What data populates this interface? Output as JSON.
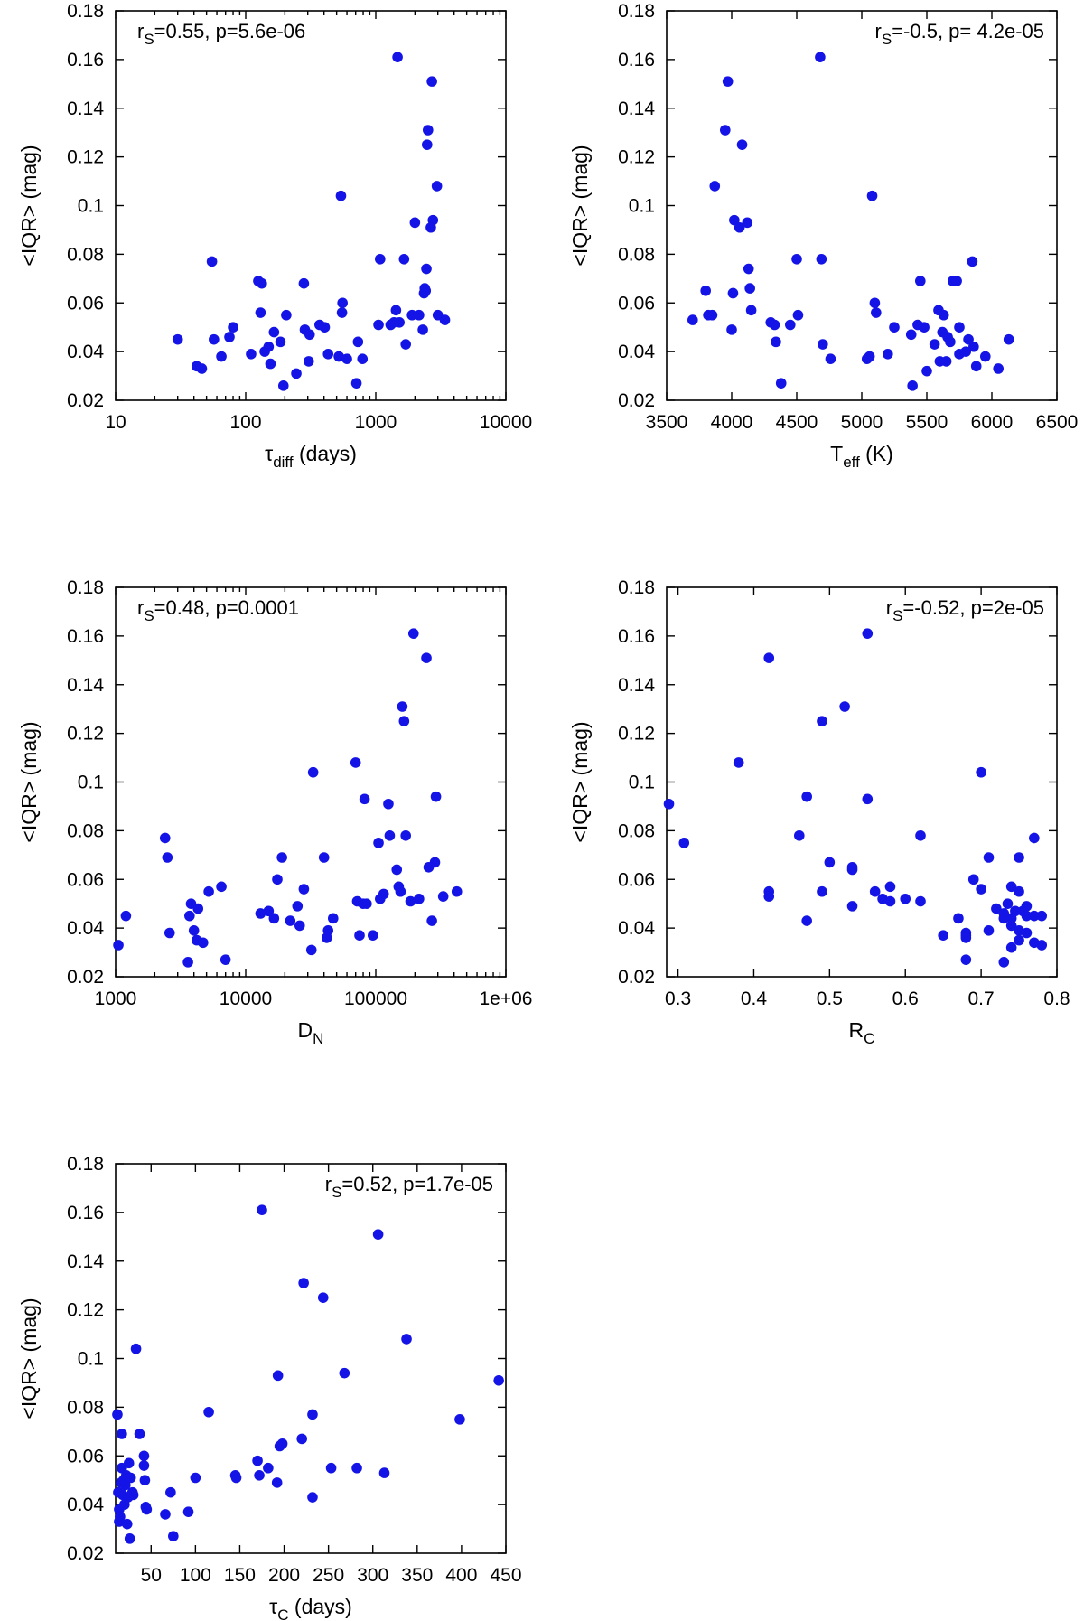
{
  "figure": {
    "marker_color": "#1414e6",
    "axis_color": "#000000",
    "background": "#ffffff"
  },
  "chart_data": [
    {
      "type": "scatter",
      "id": "tdiff",
      "xscale": "log",
      "xlim": [
        10,
        10000
      ],
      "ylim": [
        0.02,
        0.18
      ],
      "xticks": [
        "10",
        "100",
        "1000",
        "10000"
      ],
      "yticks": [
        "0.02",
        "0.04",
        "0.06",
        "0.08",
        "0.1",
        "0.12",
        "0.14",
        "0.16",
        "0.18"
      ],
      "xlabel_main": "τ",
      "xlabel_sub": "diff",
      "xlabel_tail": " (days)",
      "ylabel": "<IQR> (mag)",
      "annotation": {
        "r": "r",
        "sub": "S",
        "rest": "=0.55, p=5.6e-06",
        "position": "top-left"
      },
      "points": [
        [
          30,
          0.045
        ],
        [
          42,
          0.034
        ],
        [
          46,
          0.033
        ],
        [
          55,
          0.077
        ],
        [
          57,
          0.045
        ],
        [
          65,
          0.038
        ],
        [
          75,
          0.046
        ],
        [
          80,
          0.05
        ],
        [
          110,
          0.039
        ],
        [
          125,
          0.069
        ],
        [
          130,
          0.056
        ],
        [
          133,
          0.068
        ],
        [
          140,
          0.04
        ],
        [
          150,
          0.042
        ],
        [
          155,
          0.035
        ],
        [
          165,
          0.048
        ],
        [
          185,
          0.044
        ],
        [
          195,
          0.026
        ],
        [
          205,
          0.055
        ],
        [
          245,
          0.031
        ],
        [
          280,
          0.068
        ],
        [
          285,
          0.049
        ],
        [
          305,
          0.036
        ],
        [
          310,
          0.047
        ],
        [
          370,
          0.051
        ],
        [
          405,
          0.05
        ],
        [
          430,
          0.039
        ],
        [
          520,
          0.038
        ],
        [
          540,
          0.104
        ],
        [
          550,
          0.056
        ],
        [
          555,
          0.06
        ],
        [
          600,
          0.037
        ],
        [
          710,
          0.027
        ],
        [
          730,
          0.044
        ],
        [
          790,
          0.037
        ],
        [
          1050,
          0.051
        ],
        [
          1080,
          0.078
        ],
        [
          1300,
          0.051
        ],
        [
          1380,
          0.052
        ],
        [
          1430,
          0.057
        ],
        [
          1470,
          0.161
        ],
        [
          1520,
          0.052
        ],
        [
          1650,
          0.078
        ],
        [
          1700,
          0.043
        ],
        [
          1900,
          0.055
        ],
        [
          2000,
          0.093
        ],
        [
          2150,
          0.055
        ],
        [
          2300,
          0.049
        ],
        [
          2350,
          0.064
        ],
        [
          2380,
          0.066
        ],
        [
          2420,
          0.065
        ],
        [
          2450,
          0.074
        ],
        [
          2480,
          0.125
        ],
        [
          2520,
          0.131
        ],
        [
          2650,
          0.091
        ],
        [
          2700,
          0.151
        ],
        [
          2750,
          0.094
        ],
        [
          2950,
          0.108
        ],
        [
          3000,
          0.055
        ],
        [
          3400,
          0.053
        ]
      ]
    },
    {
      "type": "scatter",
      "id": "teff",
      "xscale": "linear",
      "xlim": [
        3500,
        6500
      ],
      "ylim": [
        0.02,
        0.18
      ],
      "xticks": [
        "3500",
        "4000",
        "4500",
        "5000",
        "5500",
        "6000",
        "6500"
      ],
      "yticks": [
        "0.02",
        "0.04",
        "0.06",
        "0.08",
        "0.1",
        "0.12",
        "0.14",
        "0.16",
        "0.18"
      ],
      "xlabel_main": "T",
      "xlabel_sub": "eff",
      "xlabel_tail": " (K)",
      "ylabel": "<IQR> (mag)",
      "annotation": {
        "r": "r",
        "sub": "S",
        "rest": "=-0.5, p= 4.2e-05",
        "position": "top-right"
      },
      "points": [
        [
          3700,
          0.053
        ],
        [
          3800,
          0.065
        ],
        [
          3820,
          0.055
        ],
        [
          3850,
          0.055
        ],
        [
          3870,
          0.108
        ],
        [
          3950,
          0.131
        ],
        [
          3970,
          0.151
        ],
        [
          4000,
          0.049
        ],
        [
          4010,
          0.064
        ],
        [
          4020,
          0.094
        ],
        [
          4060,
          0.091
        ],
        [
          4080,
          0.125
        ],
        [
          4120,
          0.093
        ],
        [
          4130,
          0.074
        ],
        [
          4140,
          0.066
        ],
        [
          4150,
          0.057
        ],
        [
          4300,
          0.052
        ],
        [
          4330,
          0.051
        ],
        [
          4340,
          0.044
        ],
        [
          4380,
          0.027
        ],
        [
          4450,
          0.051
        ],
        [
          4500,
          0.078
        ],
        [
          4510,
          0.055
        ],
        [
          4680,
          0.161
        ],
        [
          4690,
          0.078
        ],
        [
          4700,
          0.043
        ],
        [
          4760,
          0.037
        ],
        [
          5040,
          0.037
        ],
        [
          5060,
          0.038
        ],
        [
          5080,
          0.104
        ],
        [
          5100,
          0.06
        ],
        [
          5110,
          0.056
        ],
        [
          5200,
          0.039
        ],
        [
          5250,
          0.05
        ],
        [
          5380,
          0.047
        ],
        [
          5390,
          0.026
        ],
        [
          5430,
          0.051
        ],
        [
          5450,
          0.069
        ],
        [
          5480,
          0.05
        ],
        [
          5500,
          0.032
        ],
        [
          5560,
          0.043
        ],
        [
          5590,
          0.057
        ],
        [
          5600,
          0.036
        ],
        [
          5620,
          0.048
        ],
        [
          5630,
          0.055
        ],
        [
          5650,
          0.036
        ],
        [
          5660,
          0.046
        ],
        [
          5680,
          0.044
        ],
        [
          5700,
          0.069
        ],
        [
          5730,
          0.069
        ],
        [
          5750,
          0.05
        ],
        [
          5750,
          0.039
        ],
        [
          5800,
          0.04
        ],
        [
          5820,
          0.045
        ],
        [
          5850,
          0.077
        ],
        [
          5860,
          0.042
        ],
        [
          5880,
          0.034
        ],
        [
          5950,
          0.038
        ],
        [
          6050,
          0.033
        ],
        [
          6130,
          0.045
        ]
      ]
    },
    {
      "type": "scatter",
      "id": "dn",
      "xscale": "log",
      "xlim": [
        1000,
        1000000
      ],
      "ylim": [
        0.02,
        0.18
      ],
      "xticks": [
        "1000",
        "10000",
        "100000",
        "1e+06"
      ],
      "yticks": [
        "0.02",
        "0.04",
        "0.06",
        "0.08",
        "0.1",
        "0.12",
        "0.14",
        "0.16",
        "0.18"
      ],
      "xlabel_main": "D",
      "xlabel_sub": "N",
      "xlabel_tail": "",
      "ylabel": "<IQR> (mag)",
      "annotation": {
        "r": "r",
        "sub": "S",
        "rest": "=0.48, p=0.0001",
        "position": "top-left"
      },
      "points": [
        [
          1050,
          0.033
        ],
        [
          1200,
          0.045
        ],
        [
          2400,
          0.077
        ],
        [
          2500,
          0.069
        ],
        [
          2600,
          0.038
        ],
        [
          3600,
          0.026
        ],
        [
          3700,
          0.045
        ],
        [
          3800,
          0.05
        ],
        [
          4000,
          0.039
        ],
        [
          4200,
          0.035
        ],
        [
          4300,
          0.048
        ],
        [
          4700,
          0.034
        ],
        [
          5200,
          0.055
        ],
        [
          6500,
          0.057
        ],
        [
          7000,
          0.027
        ],
        [
          13000,
          0.046
        ],
        [
          15000,
          0.047
        ],
        [
          16500,
          0.044
        ],
        [
          17500,
          0.06
        ],
        [
          19000,
          0.069
        ],
        [
          22000,
          0.043
        ],
        [
          25000,
          0.049
        ],
        [
          26000,
          0.041
        ],
        [
          28000,
          0.056
        ],
        [
          32000,
          0.031
        ],
        [
          33000,
          0.104
        ],
        [
          40000,
          0.069
        ],
        [
          42000,
          0.036
        ],
        [
          43000,
          0.039
        ],
        [
          47000,
          0.044
        ],
        [
          70000,
          0.108
        ],
        [
          72000,
          0.051
        ],
        [
          75000,
          0.037
        ],
        [
          80000,
          0.05
        ],
        [
          82000,
          0.093
        ],
        [
          85000,
          0.05
        ],
        [
          95000,
          0.037
        ],
        [
          105000,
          0.075
        ],
        [
          108000,
          0.052
        ],
        [
          115000,
          0.054
        ],
        [
          125000,
          0.091
        ],
        [
          128000,
          0.078
        ],
        [
          145000,
          0.064
        ],
        [
          150000,
          0.057
        ],
        [
          155000,
          0.055
        ],
        [
          160000,
          0.131
        ],
        [
          165000,
          0.125
        ],
        [
          170000,
          0.078
        ],
        [
          185000,
          0.051
        ],
        [
          195000,
          0.161
        ],
        [
          215000,
          0.052
        ],
        [
          245000,
          0.151
        ],
        [
          255000,
          0.065
        ],
        [
          270000,
          0.043
        ],
        [
          285000,
          0.067
        ],
        [
          290000,
          0.094
        ],
        [
          330000,
          0.053
        ],
        [
          420000,
          0.055
        ]
      ]
    },
    {
      "type": "scatter",
      "id": "rc",
      "xscale": "linear",
      "xlim": [
        0.285,
        0.8
      ],
      "ylim": [
        0.02,
        0.18
      ],
      "xticks": [
        "0.3",
        "0.4",
        "0.5",
        "0.6",
        "0.7",
        "0.8"
      ],
      "xtick_values": [
        0.3,
        0.4,
        0.5,
        0.6,
        0.7,
        0.8
      ],
      "yticks": [
        "0.02",
        "0.04",
        "0.06",
        "0.08",
        "0.1",
        "0.12",
        "0.14",
        "0.16",
        "0.18"
      ],
      "xlabel_main": "R",
      "xlabel_sub": "C",
      "xlabel_tail": "",
      "ylabel": "<IQR> (mag)",
      "annotation": {
        "r": "r",
        "sub": "S",
        "rest": "=-0.52, p=2e-05",
        "position": "top-right"
      },
      "points": [
        [
          0.288,
          0.091
        ],
        [
          0.308,
          0.075
        ],
        [
          0.38,
          0.108
        ],
        [
          0.42,
          0.151
        ],
        [
          0.42,
          0.055
        ],
        [
          0.42,
          0.053
        ],
        [
          0.46,
          0.078
        ],
        [
          0.47,
          0.094
        ],
        [
          0.47,
          0.043
        ],
        [
          0.49,
          0.125
        ],
        [
          0.49,
          0.055
        ],
        [
          0.5,
          0.067
        ],
        [
          0.52,
          0.131
        ],
        [
          0.53,
          0.065
        ],
        [
          0.53,
          0.064
        ],
        [
          0.53,
          0.049
        ],
        [
          0.55,
          0.161
        ],
        [
          0.55,
          0.093
        ],
        [
          0.56,
          0.055
        ],
        [
          0.57,
          0.052
        ],
        [
          0.58,
          0.051
        ],
        [
          0.58,
          0.057
        ],
        [
          0.6,
          0.052
        ],
        [
          0.62,
          0.051
        ],
        [
          0.62,
          0.078
        ],
        [
          0.65,
          0.037
        ],
        [
          0.67,
          0.044
        ],
        [
          0.68,
          0.038
        ],
        [
          0.68,
          0.037
        ],
        [
          0.68,
          0.036
        ],
        [
          0.68,
          0.027
        ],
        [
          0.69,
          0.06
        ],
        [
          0.7,
          0.104
        ],
        [
          0.7,
          0.056
        ],
        [
          0.71,
          0.069
        ],
        [
          0.71,
          0.039
        ],
        [
          0.72,
          0.048
        ],
        [
          0.73,
          0.026
        ],
        [
          0.73,
          0.046
        ],
        [
          0.73,
          0.044
        ],
        [
          0.735,
          0.05
        ],
        [
          0.74,
          0.057
        ],
        [
          0.74,
          0.044
        ],
        [
          0.74,
          0.041
        ],
        [
          0.74,
          0.032
        ],
        [
          0.745,
          0.047
        ],
        [
          0.75,
          0.069
        ],
        [
          0.75,
          0.055
        ],
        [
          0.75,
          0.039
        ],
        [
          0.75,
          0.035
        ],
        [
          0.755,
          0.047
        ],
        [
          0.76,
          0.049
        ],
        [
          0.76,
          0.045
        ],
        [
          0.76,
          0.038
        ],
        [
          0.77,
          0.077
        ],
        [
          0.77,
          0.045
        ],
        [
          0.77,
          0.034
        ],
        [
          0.78,
          0.045
        ],
        [
          0.78,
          0.033
        ]
      ]
    },
    {
      "type": "scatter",
      "id": "tauc",
      "xscale": "linear",
      "xlim": [
        10,
        450
      ],
      "ylim": [
        0.02,
        0.18
      ],
      "xticks": [
        "50",
        "100",
        "150",
        "200",
        "250",
        "300",
        "350",
        "400",
        "450"
      ],
      "xtick_values": [
        50,
        100,
        150,
        200,
        250,
        300,
        350,
        400,
        450
      ],
      "yticks": [
        "0.02",
        "0.04",
        "0.06",
        "0.08",
        "0.1",
        "0.12",
        "0.14",
        "0.16",
        "0.18"
      ],
      "xlabel_main": "τ",
      "xlabel_sub": "C",
      "xlabel_tail": " (days)",
      "ylabel": "<IQR> (mag)",
      "annotation": {
        "r": "r",
        "sub": "S",
        "rest": "=0.52, p=1.7e-05",
        "position": "top-right"
      },
      "points": [
        [
          12,
          0.077
        ],
        [
          13,
          0.045
        ],
        [
          14,
          0.038
        ],
        [
          14,
          0.033
        ],
        [
          15,
          0.035
        ],
        [
          16,
          0.049
        ],
        [
          17,
          0.055
        ],
        [
          17,
          0.069
        ],
        [
          18,
          0.044
        ],
        [
          19,
          0.05
        ],
        [
          20,
          0.04
        ],
        [
          21,
          0.048
        ],
        [
          22,
          0.052
        ],
        [
          23,
          0.032
        ],
        [
          24,
          0.043
        ],
        [
          25,
          0.057
        ],
        [
          26,
          0.026
        ],
        [
          27,
          0.051
        ],
        [
          29,
          0.045
        ],
        [
          30,
          0.044
        ],
        [
          33,
          0.104
        ],
        [
          37,
          0.069
        ],
        [
          42,
          0.06
        ],
        [
          42,
          0.056
        ],
        [
          43,
          0.05
        ],
        [
          44,
          0.039
        ],
        [
          45,
          0.038
        ],
        [
          66,
          0.036
        ],
        [
          72,
          0.045
        ],
        [
          75,
          0.027
        ],
        [
          92,
          0.037
        ],
        [
          100,
          0.051
        ],
        [
          115,
          0.078
        ],
        [
          145,
          0.052
        ],
        [
          146,
          0.051
        ],
        [
          170,
          0.058
        ],
        [
          172,
          0.052
        ],
        [
          175,
          0.161
        ],
        [
          182,
          0.055
        ],
        [
          192,
          0.049
        ],
        [
          193,
          0.093
        ],
        [
          195,
          0.064
        ],
        [
          198,
          0.065
        ],
        [
          220,
          0.067
        ],
        [
          222,
          0.131
        ],
        [
          232,
          0.077
        ],
        [
          232,
          0.043
        ],
        [
          244,
          0.125
        ],
        [
          253,
          0.055
        ],
        [
          268,
          0.094
        ],
        [
          282,
          0.055
        ],
        [
          306,
          0.151
        ],
        [
          313,
          0.053
        ],
        [
          338,
          0.108
        ],
        [
          398,
          0.075
        ],
        [
          442,
          0.091
        ]
      ]
    }
  ]
}
